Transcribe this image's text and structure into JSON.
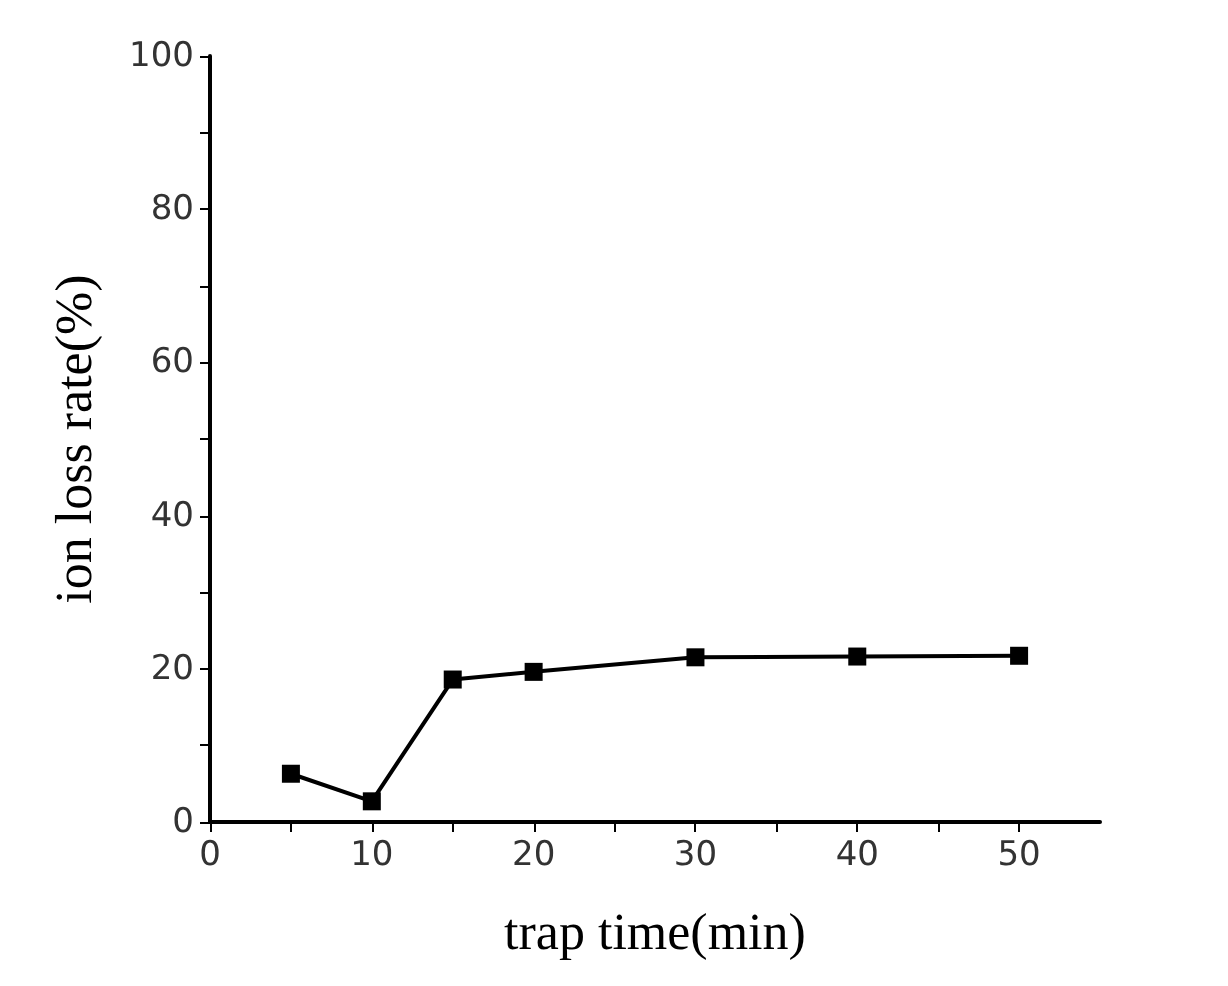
{
  "chart_data": {
    "type": "line",
    "xlabel": "trap time(min)",
    "ylabel": "ion loss rate(%)",
    "x": [
      5,
      10,
      15,
      20,
      30,
      40,
      50
    ],
    "series": [
      {
        "color": "#000000",
        "values": [
          6.3,
          2.7,
          18.6,
          19.6,
          21.5,
          21.6,
          21.7
        ]
      }
    ],
    "xlim": [
      0,
      55
    ],
    "xticks": [
      0,
      {
        "value": 5,
        "label": null
      },
      10,
      {
        "value": 15,
        "label": null
      },
      20,
      {
        "value": 25,
        "label": null
      },
      30,
      {
        "value": 35,
        "label": null
      },
      40,
      {
        "value": 45,
        "label": null
      },
      50
    ],
    "ylim": [
      0,
      100
    ],
    "yticks": [
      0,
      {
        "value": 10,
        "label": null
      },
      20,
      {
        "value": 30,
        "label": null
      },
      40,
      {
        "value": 50,
        "label": null
      },
      60,
      {
        "value": 70,
        "label": null
      },
      80,
      {
        "value": 90,
        "label": null
      },
      100
    ],
    "grid": false,
    "marker": "square",
    "line_style": "solid"
  }
}
